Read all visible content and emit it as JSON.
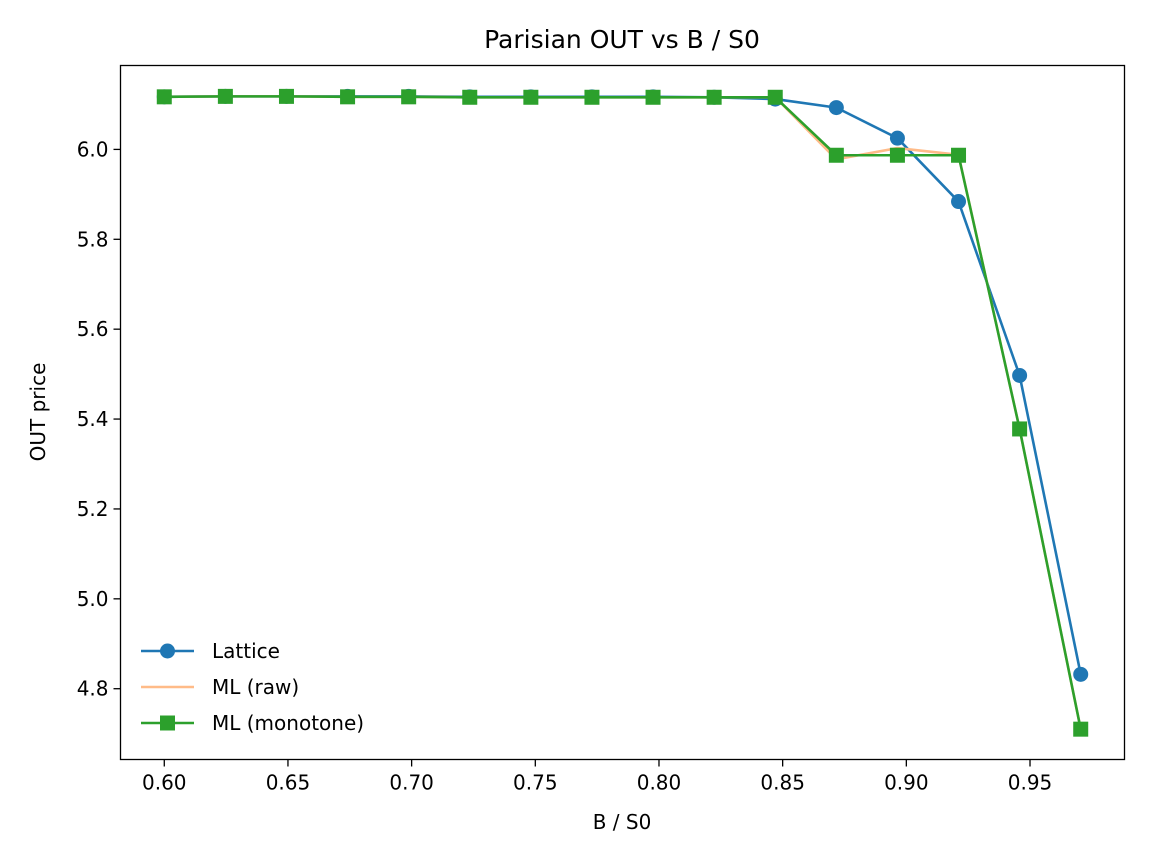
{
  "chart_data": {
    "type": "line",
    "title": "Parisian OUT vs B / S0",
    "xlabel": "B / S0",
    "ylabel": "OUT price",
    "xlim": [
      0.5823,
      0.9882
    ],
    "ylim": [
      4.6425,
      6.1867
    ],
    "xticks": [
      "0.60",
      "0.65",
      "0.70",
      "0.75",
      "0.80",
      "0.85",
      "0.90",
      "0.95"
    ],
    "xtick_values": [
      0.6,
      0.65,
      0.7,
      0.75,
      0.8,
      0.85,
      0.9,
      0.95
    ],
    "yticks": [
      "4.8",
      "5.0",
      "5.2",
      "5.4",
      "5.6",
      "5.8",
      "6.0"
    ],
    "ytick_values": [
      4.8,
      5.0,
      5.2,
      5.4,
      5.6,
      5.8,
      6.0
    ],
    "grid": false,
    "legend_position": "lower-left",
    "x": [
      0.6,
      0.6247,
      0.6494,
      0.6741,
      0.6988,
      0.7235,
      0.7482,
      0.7729,
      0.7976,
      0.8223,
      0.847,
      0.8717,
      0.8964,
      0.9211,
      0.9458,
      0.9705
    ],
    "series": [
      {
        "name": "Lattice",
        "color": "#1f77b4",
        "marker": "circle",
        "values": [
          6.117,
          6.118,
          6.118,
          6.118,
          6.118,
          6.117,
          6.117,
          6.117,
          6.117,
          6.116,
          6.112,
          6.093,
          6.025,
          5.884,
          5.497,
          4.832
        ]
      },
      {
        "name": "ML (raw)",
        "color": "#ffbb88",
        "marker": "none",
        "values": [
          6.117,
          6.118,
          6.118,
          6.117,
          6.117,
          6.116,
          6.116,
          6.116,
          6.116,
          6.116,
          6.116,
          5.978,
          6.003,
          5.988,
          5.378,
          4.71
        ]
      },
      {
        "name": "ML (monotone)",
        "color": "#2ca02c",
        "marker": "square",
        "values": [
          6.117,
          6.118,
          6.118,
          6.117,
          6.117,
          6.116,
          6.116,
          6.116,
          6.116,
          6.116,
          6.116,
          5.987,
          5.987,
          5.987,
          5.378,
          4.71
        ]
      }
    ]
  }
}
